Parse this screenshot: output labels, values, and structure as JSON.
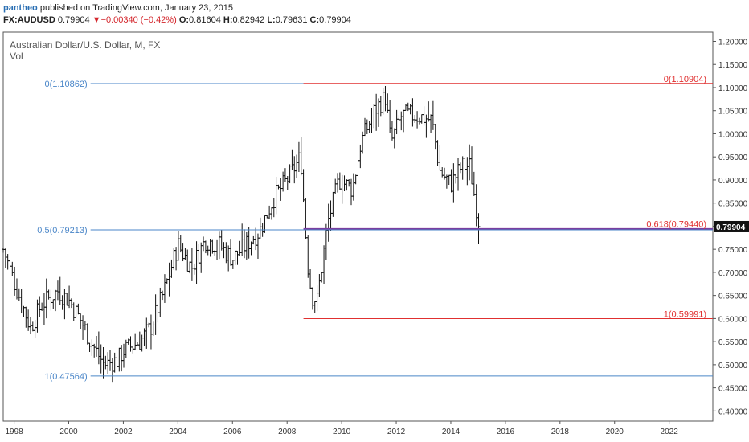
{
  "header": {
    "author": "pantheo",
    "published_text": "published on TradingView.com, January 23, 2015",
    "symbol": "FX:AUDUSD",
    "last": "0.79904",
    "change": "−0.00340 (−0.42%)",
    "o_label": "O:",
    "o_value": "0.81604",
    "h_label": "H:",
    "h_value": "0.82942",
    "l_label": "L:",
    "l_value": "0.79631",
    "c_label": "C:",
    "c_value": "0.79904"
  },
  "chart_data": {
    "type": "ohlc-bar",
    "title": "Australian Dollar/U.S. Dollar, M, FX",
    "subtitle": "Vol",
    "x_ticks": [
      "1998",
      "2000",
      "2002",
      "2004",
      "2006",
      "2008",
      "2010",
      "2012",
      "2014",
      "2016",
      "2018",
      "2020",
      "2022"
    ],
    "x_range": [
      1997.6,
      2023.6
    ],
    "y_ticks": [
      "0.40000",
      "0.45000",
      "0.50000",
      "0.55000",
      "0.60000",
      "0.65000",
      "0.70000",
      "0.75000",
      "0.80000",
      "0.85000",
      "0.90000",
      "0.95000",
      "1.00000",
      "1.05000",
      "1.10000",
      "1.15000",
      "1.20000"
    ],
    "y_range": [
      0.378,
      1.22
    ],
    "last_price_label": "0.79904",
    "last_price": 0.79904,
    "colors": {
      "blue_fib": "#4a86c8",
      "red_fib": "#e03030",
      "purple": "#7a3fa0",
      "bars": "#111111"
    },
    "fib_blue": [
      {
        "label": "0(1.10862)",
        "value": 1.10862
      },
      {
        "label": "0.5(0.79213)",
        "value": 0.79213
      },
      {
        "label": "1(0.47564)",
        "value": 0.47564
      }
    ],
    "fib_red": [
      {
        "label": "0(1.10904)",
        "value": 1.10904
      },
      {
        "label": "0.618(0.79440)",
        "value": 0.7944
      },
      {
        "label": "1(0.59991)",
        "value": 0.59991
      }
    ],
    "anchors": [
      [
        1997.6,
        0.75
      ],
      [
        1998.0,
        0.68
      ],
      [
        1998.6,
        0.58
      ],
      [
        1999.0,
        0.63
      ],
      [
        1999.6,
        0.66
      ],
      [
        2000.0,
        0.64
      ],
      [
        2000.5,
        0.59
      ],
      [
        2000.8,
        0.55
      ],
      [
        2001.3,
        0.5
      ],
      [
        2001.8,
        0.51
      ],
      [
        2002.0,
        0.53
      ],
      [
        2002.6,
        0.55
      ],
      [
        2003.0,
        0.58
      ],
      [
        2003.5,
        0.66
      ],
      [
        2004.0,
        0.76
      ],
      [
        2004.5,
        0.71
      ],
      [
        2005.0,
        0.77
      ],
      [
        2005.5,
        0.76
      ],
      [
        2006.0,
        0.73
      ],
      [
        2006.5,
        0.76
      ],
      [
        2007.0,
        0.79
      ],
      [
        2007.5,
        0.86
      ],
      [
        2008.0,
        0.9
      ],
      [
        2008.5,
        0.95
      ],
      [
        2008.75,
        0.72
      ],
      [
        2008.9,
        0.65
      ],
      [
        2009.1,
        0.64
      ],
      [
        2009.5,
        0.81
      ],
      [
        2009.9,
        0.9
      ],
      [
        2010.4,
        0.88
      ],
      [
        2010.7,
        0.98
      ],
      [
        2011.2,
        1.05
      ],
      [
        2011.6,
        1.08
      ],
      [
        2011.8,
        0.98
      ],
      [
        2012.2,
        1.04
      ],
      [
        2012.7,
        1.04
      ],
      [
        2013.3,
        1.03
      ],
      [
        2013.6,
        0.92
      ],
      [
        2014.0,
        0.89
      ],
      [
        2014.4,
        0.93
      ],
      [
        2014.7,
        0.93
      ],
      [
        2014.85,
        0.87
      ],
      [
        2015.05,
        0.8
      ]
    ]
  }
}
